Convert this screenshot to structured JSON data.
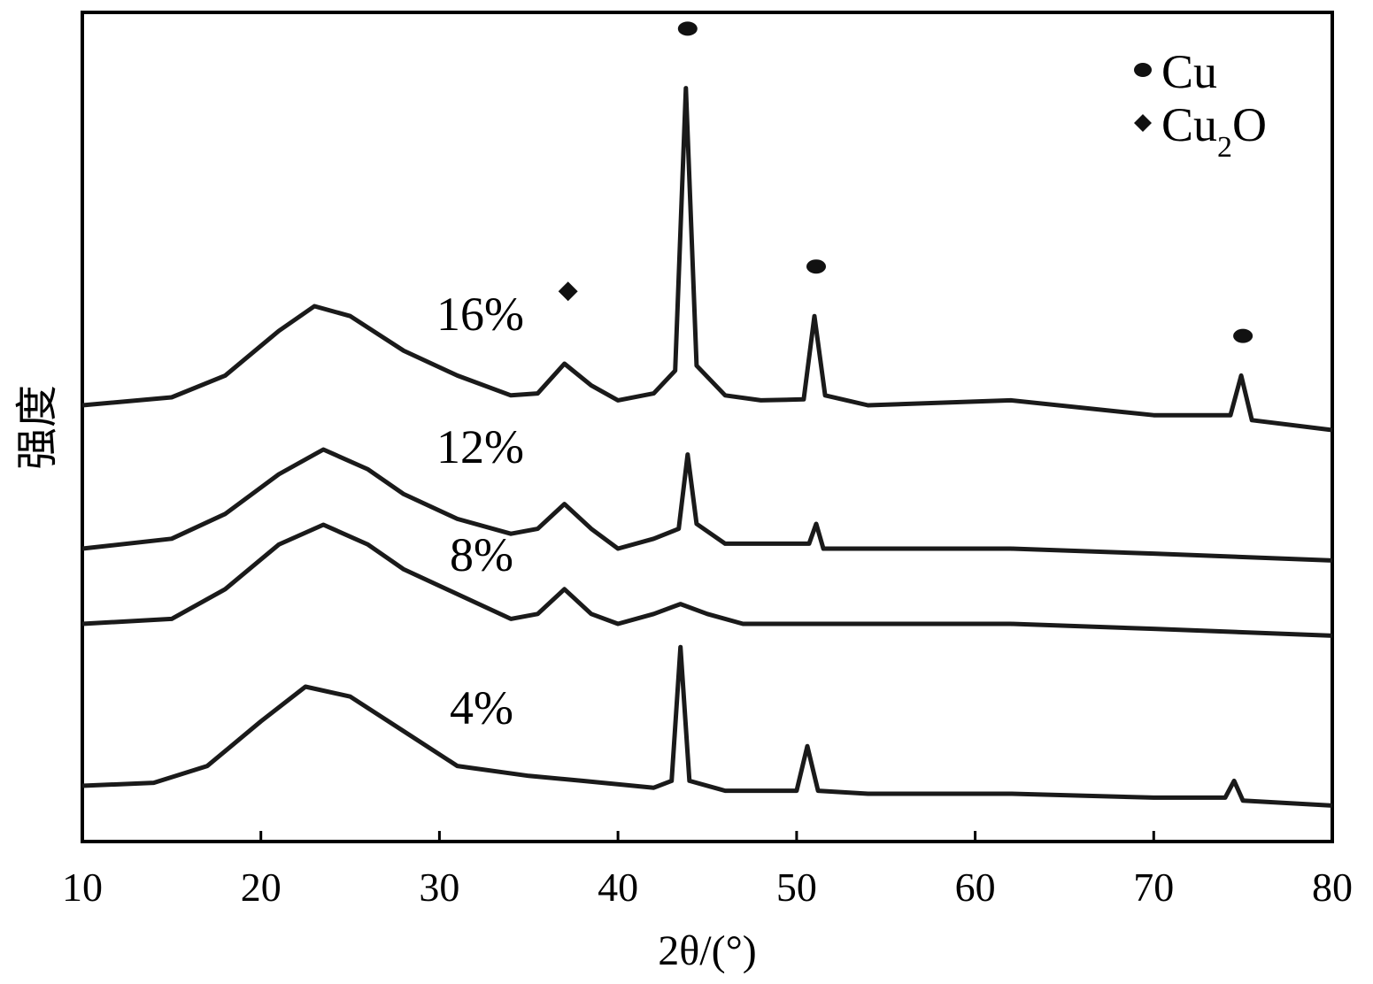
{
  "chart_data": {
    "type": "line",
    "xlabel": "2θ/(°)",
    "ylabel": "强度",
    "xlim": [
      10,
      80
    ],
    "x_ticks": [
      "10",
      "20",
      "30",
      "40",
      "50",
      "60",
      "70",
      "80"
    ],
    "grid": false,
    "y_ticks_shown": false,
    "legend": {
      "position": "top-right",
      "entries": [
        {
          "marker": "circle",
          "label_main": "Cu",
          "label_sub": ""
        },
        {
          "marker": "diamond",
          "label_main": "Cu",
          "label_sub": "2",
          "label_tail": "O"
        }
      ]
    },
    "series": [
      {
        "label": "16%",
        "offset": 3,
        "points": [
          [
            10,
            0.0
          ],
          [
            15,
            0.08
          ],
          [
            18,
            0.3
          ],
          [
            21,
            0.75
          ],
          [
            23,
            1.0
          ],
          [
            25,
            0.9
          ],
          [
            28,
            0.55
          ],
          [
            31,
            0.3
          ],
          [
            34,
            0.1
          ],
          [
            35.5,
            0.12
          ],
          [
            37,
            0.42
          ],
          [
            38.5,
            0.2
          ],
          [
            40,
            0.05
          ],
          [
            42,
            0.12
          ],
          [
            43.2,
            0.35
          ],
          [
            43.8,
            3.2
          ],
          [
            44.4,
            0.4
          ],
          [
            46,
            0.1
          ],
          [
            48,
            0.05
          ],
          [
            50.4,
            0.06
          ],
          [
            51.0,
            0.9
          ],
          [
            51.6,
            0.1
          ],
          [
            54,
            0.0
          ],
          [
            62,
            0.05
          ],
          [
            70,
            -0.1
          ],
          [
            74.3,
            -0.1
          ],
          [
            74.9,
            0.3
          ],
          [
            75.5,
            -0.15
          ],
          [
            80,
            -0.25
          ]
        ]
      },
      {
        "label": "12%",
        "offset": 2,
        "points": [
          [
            10,
            0.0
          ],
          [
            15,
            0.1
          ],
          [
            18,
            0.35
          ],
          [
            21,
            0.75
          ],
          [
            23.5,
            1.0
          ],
          [
            26,
            0.8
          ],
          [
            28,
            0.55
          ],
          [
            31,
            0.3
          ],
          [
            34,
            0.15
          ],
          [
            35.5,
            0.2
          ],
          [
            37,
            0.45
          ],
          [
            38.5,
            0.2
          ],
          [
            40,
            0.0
          ],
          [
            42,
            0.1
          ],
          [
            43.4,
            0.2
          ],
          [
            43.9,
            0.95
          ],
          [
            44.4,
            0.25
          ],
          [
            46,
            0.05
          ],
          [
            48,
            0.05
          ],
          [
            50.7,
            0.05
          ],
          [
            51.1,
            0.25
          ],
          [
            51.5,
            0.0
          ],
          [
            54,
            0.0
          ],
          [
            62,
            0.0
          ],
          [
            70,
            -0.05
          ],
          [
            80,
            -0.12
          ]
        ]
      },
      {
        "label": "8%",
        "offset": 1,
        "points": [
          [
            10,
            0.0
          ],
          [
            15,
            0.05
          ],
          [
            18,
            0.35
          ],
          [
            21,
            0.8
          ],
          [
            23.5,
            1.0
          ],
          [
            26,
            0.8
          ],
          [
            28,
            0.55
          ],
          [
            31,
            0.3
          ],
          [
            34,
            0.05
          ],
          [
            35.5,
            0.1
          ],
          [
            37,
            0.35
          ],
          [
            38.5,
            0.1
          ],
          [
            40,
            0.0
          ],
          [
            42,
            0.1
          ],
          [
            43.5,
            0.2
          ],
          [
            45,
            0.1
          ],
          [
            47,
            0.0
          ],
          [
            52,
            0.0
          ],
          [
            62,
            0.0
          ],
          [
            70,
            -0.05
          ],
          [
            80,
            -0.12
          ]
        ]
      },
      {
        "label": "4%",
        "offset": 0,
        "points": [
          [
            10,
            0.0
          ],
          [
            14,
            0.03
          ],
          [
            17,
            0.2
          ],
          [
            20,
            0.65
          ],
          [
            22.5,
            1.0
          ],
          [
            25,
            0.9
          ],
          [
            28,
            0.55
          ],
          [
            31,
            0.2
          ],
          [
            35,
            0.1
          ],
          [
            38,
            0.05
          ],
          [
            42,
            -0.02
          ],
          [
            43.0,
            0.05
          ],
          [
            43.5,
            1.4
          ],
          [
            44.0,
            0.05
          ],
          [
            46,
            -0.05
          ],
          [
            50.0,
            -0.05
          ],
          [
            50.6,
            0.4
          ],
          [
            51.2,
            -0.05
          ],
          [
            54,
            -0.08
          ],
          [
            62,
            -0.08
          ],
          [
            70,
            -0.12
          ],
          [
            74.0,
            -0.12
          ],
          [
            74.5,
            0.05
          ],
          [
            75.0,
            -0.15
          ],
          [
            80,
            -0.2
          ]
        ]
      }
    ],
    "markers": [
      {
        "type": "circle",
        "x": 43.9,
        "value": 3.8,
        "series": "16%"
      },
      {
        "type": "circle",
        "x": 51.1,
        "value": 1.4,
        "series": "16%"
      },
      {
        "type": "circle",
        "x": 75.0,
        "value": 0.7,
        "series": "16%"
      },
      {
        "type": "diamond",
        "x": 37.2,
        "value": 1.15,
        "series": "16%"
      }
    ]
  }
}
